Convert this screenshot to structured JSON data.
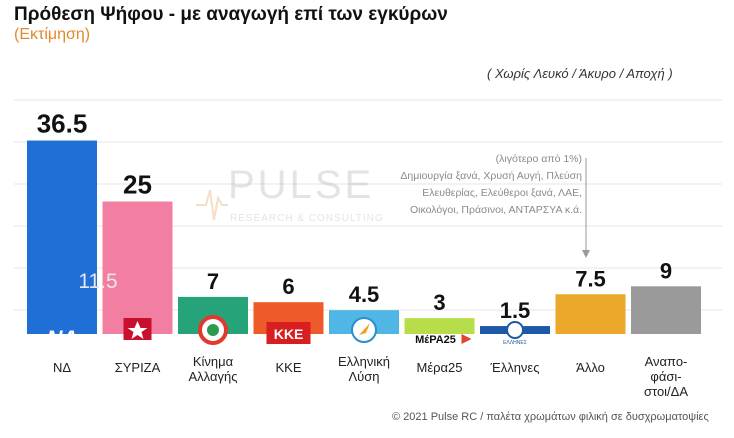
{
  "title": "Πρόθεση Ψήφου - με αναγωγή επί των εγκύρων",
  "subtitle": "(Εκτίμηση)",
  "note": "( Χωρίς Λευκό / Άκυρο / Αποχή )",
  "watermark": {
    "brand": "PULSE",
    "tagline": "RESEARCH & CONSULTING"
  },
  "annotation": {
    "lines": [
      "(λιγότερο από 1%)",
      "Δημιουργία ξανά, Χρυσή Αυγή, Πλεύση",
      "Ελευθερίας, Ελεύθεροι ξανά, ΛΑΕ,",
      "Οικολόγοι, Πράσινοι, ΑΝΤΑΡΣΥΑ κ.ά."
    ]
  },
  "footer": "© 2021 Pulse RC  /  παλέτα χρωμάτων φιλική σε δυσχρωματοψίες",
  "chart_data": {
    "type": "bar",
    "categories": [
      "ΝΔ",
      "ΣΥΡΙΖΑ",
      "Κίνημα Αλλαγής",
      "ΚΚΕ",
      "Ελληνική Λύση",
      "Μέρα25",
      "Έλληνες",
      "Άλλο",
      "Αναπο-φάσι-στοι/ΔΑ"
    ],
    "category_lines": [
      [
        "ΝΔ"
      ],
      [
        "ΣΥΡΙΖΑ"
      ],
      [
        "Κίνημα",
        "Αλλαγής"
      ],
      [
        "ΚΚΕ"
      ],
      [
        "Ελληνική",
        "Λύση"
      ],
      [
        "Μέρα25"
      ],
      [
        "Έλληνες"
      ],
      [
        "Άλλο"
      ],
      [
        "Αναπο-",
        "φάσι-",
        "στοι/ΔΑ"
      ]
    ],
    "values": [
      36.5,
      25,
      7,
      6,
      4.5,
      3,
      1.5,
      7.5,
      9
    ],
    "value_labels": [
      "36.5",
      "25",
      "7",
      "6",
      "4.5",
      "3",
      "1.5",
      "7.5",
      "9"
    ],
    "colors": [
      "#1f6fd6",
      "#f27fa1",
      "#27a37a",
      "#ee5a2a",
      "#4fb6e6",
      "#b8dd4a",
      "#1c5aa8",
      "#eba82a",
      "#9a9a9a"
    ],
    "logos": [
      "ΝΔ",
      "",
      "",
      "ΚΚΕ",
      "",
      "ΜέΡΑ25",
      "ΕΛΛΗΝΕΣ",
      "",
      ""
    ],
    "difference_label": "11.5",
    "ylim": [
      0,
      40
    ],
    "grid": true
  }
}
